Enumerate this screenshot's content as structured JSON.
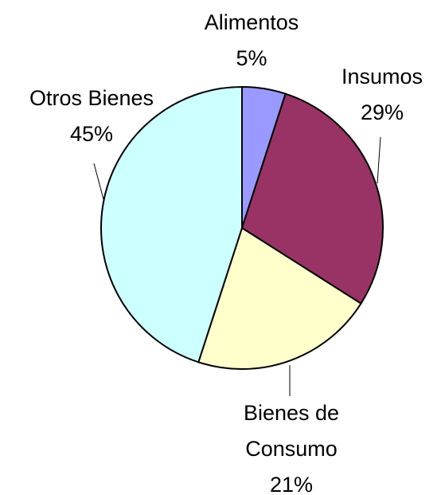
{
  "chart_data": {
    "type": "pie",
    "categories": [
      "Alimentos",
      "Insumos",
      "Bienes de Consumo",
      "Otros Bienes"
    ],
    "values": [
      5,
      29,
      21,
      45
    ],
    "value_labels": [
      "5%",
      "29%",
      "21%",
      "45%"
    ],
    "colors": [
      "#9999ff",
      "#993366",
      "#ffffcc",
      "#ccffff"
    ]
  }
}
